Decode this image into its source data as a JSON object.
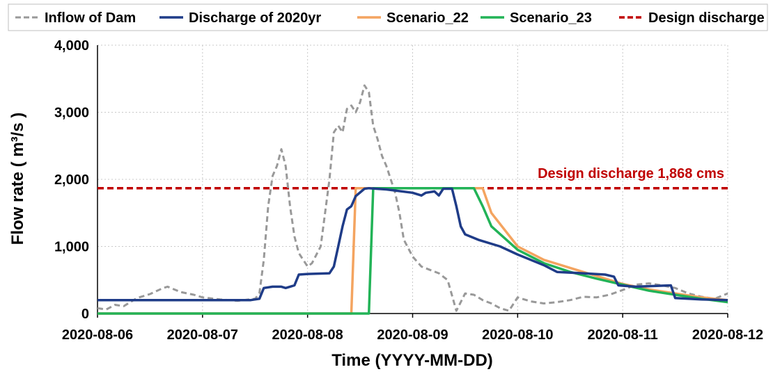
{
  "chart_data": {
    "type": "line",
    "title": "",
    "xlabel": "Time (YYYY-MM-DD)",
    "ylabel": "Flow rate ( m³/s )",
    "x_tick_labels": [
      "2020-08-06",
      "2020-08-07",
      "2020-08-08",
      "2020-08-09",
      "2020-08-10",
      "2020-08-11",
      "2020-08-12"
    ],
    "x_unit": "day",
    "xlim": [
      "2020-08-06",
      "2020-08-12"
    ],
    "y_tick_labels": [
      "0",
      "1,000",
      "2,000",
      "3,000",
      "4,000"
    ],
    "ylim": [
      0,
      4000
    ],
    "grid": {
      "x": true,
      "y": true,
      "style": "dotted"
    },
    "legend": {
      "placement": "top"
    },
    "annotation": {
      "text": "Design discharge 1,868 cms",
      "color": "#c00000"
    },
    "series": [
      {
        "name": "Inflow of Dam",
        "color": "#999999",
        "dash": true,
        "width": 3,
        "points": [
          [
            "2020-08-06 00:00",
            80
          ],
          [
            "2020-08-06 02:00",
            60
          ],
          [
            "2020-08-06 04:00",
            130
          ],
          [
            "2020-08-06 06:00",
            110
          ],
          [
            "2020-08-06 09:00",
            230
          ],
          [
            "2020-08-06 12:00",
            290
          ],
          [
            "2020-08-06 15:00",
            380
          ],
          [
            "2020-08-06 16:00",
            400
          ],
          [
            "2020-08-06 19:00",
            320
          ],
          [
            "2020-08-06 22:00",
            280
          ],
          [
            "2020-08-07 00:00",
            240
          ],
          [
            "2020-08-07 04:00",
            210
          ],
          [
            "2020-08-07 08:00",
            190
          ],
          [
            "2020-08-07 12:00",
            220
          ],
          [
            "2020-08-07 13:00",
            300
          ],
          [
            "2020-08-07 14:00",
            800
          ],
          [
            "2020-08-07 15:00",
            1600
          ],
          [
            "2020-08-07 16:00",
            2050
          ],
          [
            "2020-08-07 17:00",
            2200
          ],
          [
            "2020-08-07 18:00",
            2450
          ],
          [
            "2020-08-07 19:00",
            2200
          ],
          [
            "2020-08-07 20:00",
            1600
          ],
          [
            "2020-08-07 21:00",
            1150
          ],
          [
            "2020-08-07 22:00",
            900
          ],
          [
            "2020-08-08 00:00",
            700
          ],
          [
            "2020-08-08 01:00",
            750
          ],
          [
            "2020-08-08 03:00",
            1000
          ],
          [
            "2020-08-08 05:00",
            2000
          ],
          [
            "2020-08-08 06:00",
            2700
          ],
          [
            "2020-08-08 07:00",
            2800
          ],
          [
            "2020-08-08 08:00",
            2700
          ],
          [
            "2020-08-08 09:00",
            3050
          ],
          [
            "2020-08-08 10:00",
            3100
          ],
          [
            "2020-08-08 11:00",
            3000
          ],
          [
            "2020-08-08 12:00",
            3150
          ],
          [
            "2020-08-08 13:00",
            3400
          ],
          [
            "2020-08-08 14:00",
            3300
          ],
          [
            "2020-08-08 15:00",
            2800
          ],
          [
            "2020-08-08 16:00",
            2600
          ],
          [
            "2020-08-08 17:00",
            2350
          ],
          [
            "2020-08-08 18:00",
            2200
          ],
          [
            "2020-08-08 20:00",
            1800
          ],
          [
            "2020-08-08 21:00",
            1500
          ],
          [
            "2020-08-08 22:00",
            1100
          ],
          [
            "2020-08-09 00:00",
            850
          ],
          [
            "2020-08-09 02:00",
            700
          ],
          [
            "2020-08-09 04:00",
            650
          ],
          [
            "2020-08-09 06:00",
            600
          ],
          [
            "2020-08-09 08:00",
            500
          ],
          [
            "2020-08-09 10:00",
            40
          ],
          [
            "2020-08-09 12:00",
            300
          ],
          [
            "2020-08-09 14:00",
            280
          ],
          [
            "2020-08-09 16:00",
            200
          ],
          [
            "2020-08-09 18:00",
            150
          ],
          [
            "2020-08-09 20:00",
            80
          ],
          [
            "2020-08-09 22:00",
            40
          ],
          [
            "2020-08-10 00:00",
            240
          ],
          [
            "2020-08-10 03:00",
            180
          ],
          [
            "2020-08-10 06:00",
            150
          ],
          [
            "2020-08-10 09:00",
            170
          ],
          [
            "2020-08-10 12:00",
            200
          ],
          [
            "2020-08-10 15:00",
            250
          ],
          [
            "2020-08-10 18:00",
            240
          ],
          [
            "2020-08-10 21:00",
            280
          ],
          [
            "2020-08-11 00:00",
            350
          ],
          [
            "2020-08-11 03:00",
            430
          ],
          [
            "2020-08-11 06:00",
            450
          ],
          [
            "2020-08-11 09:00",
            420
          ],
          [
            "2020-08-11 12:00",
            380
          ],
          [
            "2020-08-11 15:00",
            300
          ],
          [
            "2020-08-11 18:00",
            250
          ],
          [
            "2020-08-11 21:00",
            220
          ],
          [
            "2020-08-12 00:00",
            300
          ]
        ]
      },
      {
        "name": "Discharge of 2020yr",
        "color": "#1f3c88",
        "dash": false,
        "width": 3.5,
        "points": [
          [
            "2020-08-06 00:00",
            200
          ],
          [
            "2020-08-07 11:00",
            200
          ],
          [
            "2020-08-07 13:00",
            220
          ],
          [
            "2020-08-07 14:00",
            380
          ],
          [
            "2020-08-07 16:00",
            400
          ],
          [
            "2020-08-07 18:00",
            400
          ],
          [
            "2020-08-07 19:00",
            380
          ],
          [
            "2020-08-07 20:00",
            400
          ],
          [
            "2020-08-07 21:00",
            420
          ],
          [
            "2020-08-07 22:00",
            580
          ],
          [
            "2020-08-08 00:00",
            590
          ],
          [
            "2020-08-08 05:00",
            600
          ],
          [
            "2020-08-08 06:00",
            700
          ],
          [
            "2020-08-08 07:00",
            1000
          ],
          [
            "2020-08-08 08:00",
            1300
          ],
          [
            "2020-08-08 09:00",
            1550
          ],
          [
            "2020-08-08 10:00",
            1600
          ],
          [
            "2020-08-08 11:00",
            1750
          ],
          [
            "2020-08-08 13:00",
            1860
          ],
          [
            "2020-08-08 14:00",
            1868
          ],
          [
            "2020-08-08 18:00",
            1850
          ],
          [
            "2020-08-09 00:00",
            1800
          ],
          [
            "2020-08-09 02:00",
            1760
          ],
          [
            "2020-08-09 03:00",
            1800
          ],
          [
            "2020-08-09 05:00",
            1820
          ],
          [
            "2020-08-09 06:00",
            1760
          ],
          [
            "2020-08-09 07:00",
            1860
          ],
          [
            "2020-08-09 09:00",
            1860
          ],
          [
            "2020-08-09 10:00",
            1600
          ],
          [
            "2020-08-09 11:00",
            1300
          ],
          [
            "2020-08-09 12:00",
            1180
          ],
          [
            "2020-08-09 15:00",
            1100
          ],
          [
            "2020-08-09 20:00",
            1000
          ],
          [
            "2020-08-10 00:00",
            880
          ],
          [
            "2020-08-10 06:00",
            720
          ],
          [
            "2020-08-10 09:00",
            620
          ],
          [
            "2020-08-10 15:00",
            600
          ],
          [
            "2020-08-10 20:00",
            580
          ],
          [
            "2020-08-10 22:00",
            550
          ],
          [
            "2020-08-10 23:00",
            420
          ],
          [
            "2020-08-11 03:00",
            400
          ],
          [
            "2020-08-11 11:00",
            420
          ],
          [
            "2020-08-11 12:00",
            230
          ],
          [
            "2020-08-11 18:00",
            210
          ],
          [
            "2020-08-12 00:00",
            200
          ]
        ]
      },
      {
        "name": "Scenario_22",
        "color": "#f4a460",
        "dash": false,
        "width": 3.5,
        "points": [
          [
            "2020-08-06 00:00",
            0
          ],
          [
            "2020-08-08 10:00",
            0
          ],
          [
            "2020-08-08 11:00",
            1868
          ],
          [
            "2020-08-09 16:00",
            1868
          ],
          [
            "2020-08-09 18:00",
            1500
          ],
          [
            "2020-08-09 21:00",
            1250
          ],
          [
            "2020-08-10 00:00",
            1000
          ],
          [
            "2020-08-10 06:00",
            800
          ],
          [
            "2020-08-10 12:00",
            680
          ],
          [
            "2020-08-10 18:00",
            560
          ],
          [
            "2020-08-11 00:00",
            440
          ],
          [
            "2020-08-11 06:00",
            360
          ],
          [
            "2020-08-11 12:00",
            300
          ],
          [
            "2020-08-11 18:00",
            240
          ],
          [
            "2020-08-12 00:00",
            200
          ]
        ]
      },
      {
        "name": "Scenario_23",
        "color": "#22b357",
        "dash": false,
        "width": 3.5,
        "points": [
          [
            "2020-08-06 00:00",
            0
          ],
          [
            "2020-08-08 14:00",
            0
          ],
          [
            "2020-08-08 15:00",
            1868
          ],
          [
            "2020-08-09 14:00",
            1868
          ],
          [
            "2020-08-09 16:00",
            1600
          ],
          [
            "2020-08-09 18:00",
            1300
          ],
          [
            "2020-08-10 00:00",
            950
          ],
          [
            "2020-08-10 06:00",
            750
          ],
          [
            "2020-08-10 12:00",
            620
          ],
          [
            "2020-08-10 18:00",
            520
          ],
          [
            "2020-08-11 00:00",
            430
          ],
          [
            "2020-08-11 06:00",
            340
          ],
          [
            "2020-08-11 12:00",
            280
          ],
          [
            "2020-08-11 18:00",
            220
          ],
          [
            "2020-08-12 00:00",
            170
          ]
        ]
      },
      {
        "name": "Design discharge",
        "color": "#c00000",
        "dash": true,
        "width": 3.5,
        "points": [
          [
            "2020-08-06 00:00",
            1868
          ],
          [
            "2020-08-12 00:00",
            1868
          ]
        ]
      }
    ]
  }
}
